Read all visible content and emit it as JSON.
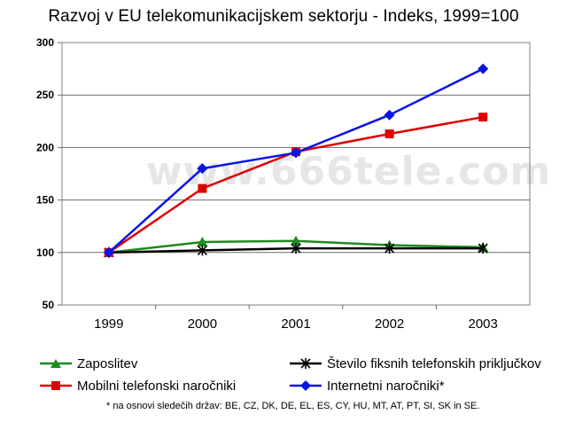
{
  "chart_data": {
    "type": "line",
    "title": "Razvoj v EU telekomunikacijskem sektorju - Indeks, 1999=100",
    "x": [
      "1999",
      "2000",
      "2001",
      "2002",
      "2003"
    ],
    "ylim": [
      50,
      300
    ],
    "yticks": [
      50,
      100,
      150,
      200,
      250,
      300
    ],
    "grid": true,
    "legend_position": "bottom",
    "series": [
      {
        "name": "Zaposlitev",
        "values": [
          100,
          110,
          111,
          107,
          105
        ],
        "color": "#1e8a1e",
        "marker": "triangle"
      },
      {
        "name": "Število fiksnih telefonskih priključkov",
        "values": [
          100,
          102,
          104,
          104,
          104
        ],
        "color": "#000000",
        "marker": "star"
      },
      {
        "name": "Mobilni telefonski naročniki",
        "values": [
          100,
          161,
          196,
          213,
          229
        ],
        "color": "#e00000",
        "marker": "square"
      },
      {
        "name": "Internetni naročniki*",
        "values": [
          100,
          180,
          195,
          231,
          275
        ],
        "color": "#0a14e6",
        "marker": "diamond"
      }
    ],
    "footnote": "* na osnovi sledečih držav: BE, CZ, DK, DE, EL, ES, CY, HU, MT, AT, PT, SI, SK in SE.",
    "watermark": "www.666tele.com"
  }
}
